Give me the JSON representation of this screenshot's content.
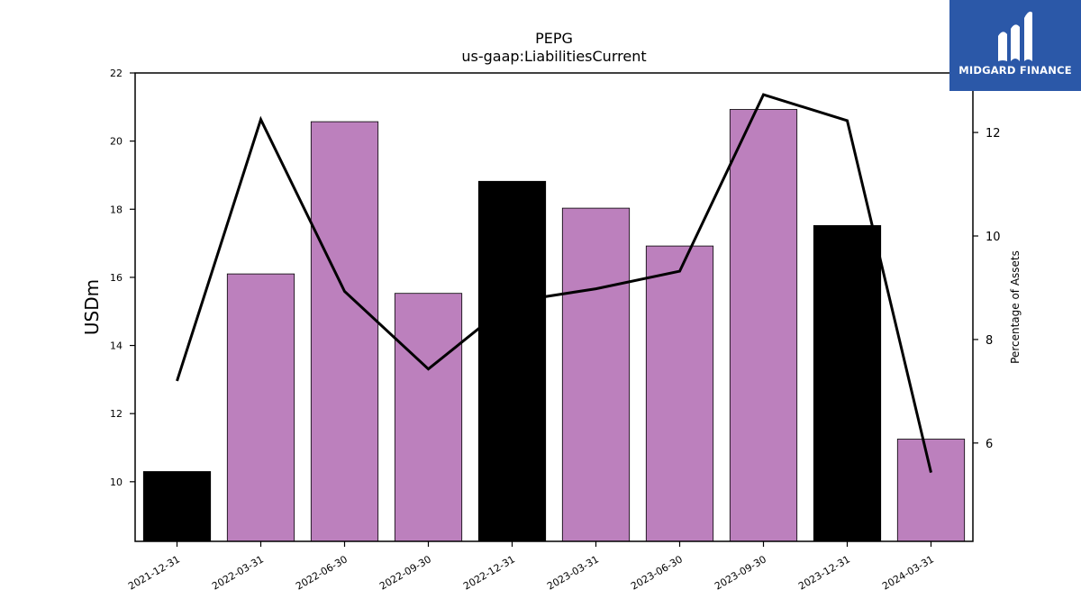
{
  "brand": {
    "name": "MIDGARD FINANCE",
    "bg_color": "#2b58a8"
  },
  "chart_data": {
    "type": "bar",
    "title": "PEPG",
    "subtitle": "us-gaap:LiabilitiesCurrent",
    "ylabel": "USDm",
    "ylabel_right": "Percentage of Assets",
    "categories": [
      "2021-12-31",
      "2022-03-31",
      "2022-06-30",
      "2022-09-30",
      "2022-12-31",
      "2023-03-31",
      "2023-06-30",
      "2023-09-30",
      "2023-12-31",
      "2024-03-31"
    ],
    "series": [
      {
        "type": "bar",
        "values": [
          10.3,
          16.1,
          20.57,
          15.53,
          18.82,
          18.03,
          16.92,
          20.93,
          17.52,
          11.25
        ],
        "colors": [
          "#000000",
          "#bc80bd",
          "#bc80bd",
          "#bc80bd",
          "#000000",
          "#bc80bd",
          "#bc80bd",
          "#bc80bd",
          "#000000",
          "#bc80bd"
        ]
      },
      {
        "type": "line",
        "axis": "right",
        "color": "#000000",
        "values": [
          7.2,
          12.25,
          8.93,
          7.43,
          8.73,
          8.98,
          9.32,
          12.73,
          12.23,
          5.43
        ]
      }
    ],
    "ylim": [
      8.25,
      22
    ],
    "yticks": [
      10,
      12,
      14,
      16,
      18,
      20,
      22
    ],
    "y2lim": [
      4.1,
      13.15
    ],
    "y2ticks": [
      6,
      8,
      10,
      12
    ],
    "grid": false
  }
}
